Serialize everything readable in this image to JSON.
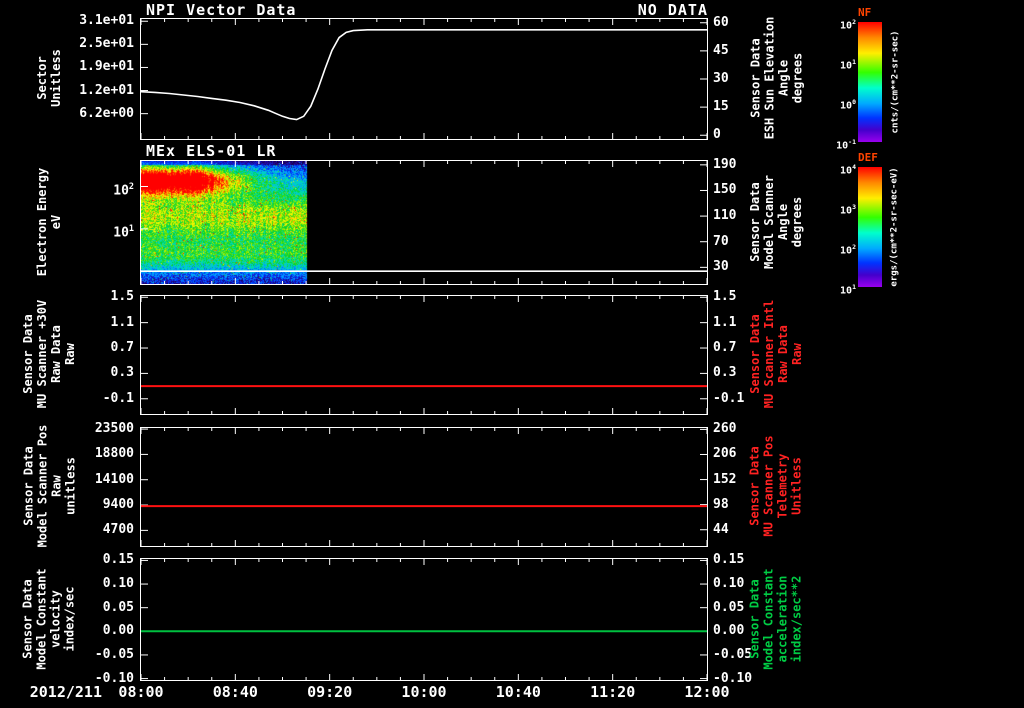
{
  "header": {
    "title": "NPI Vector Data",
    "right_label": "NO DATA"
  },
  "x_axis": {
    "date_label": "2012/211",
    "xlim": [
      8,
      12
    ],
    "ticks": [
      {
        "v": 8,
        "label": "08:00"
      },
      {
        "v": 8.6667,
        "label": "08:40"
      },
      {
        "v": 9.3333,
        "label": "09:20"
      },
      {
        "v": 10,
        "label": "10:00"
      },
      {
        "v": 10.6667,
        "label": "10:40"
      },
      {
        "v": 11.3333,
        "label": "11:20"
      },
      {
        "v": 12,
        "label": "12:00"
      }
    ]
  },
  "colorbars": [
    {
      "name": "NF",
      "ticks": [
        "10^2",
        "10^1",
        "10^0",
        "10^-1"
      ],
      "unit": "cnts/(cm**2-sr-sec)"
    },
    {
      "name": "DEF",
      "ticks": [
        "10^4",
        "10^3",
        "10^2",
        "10^1"
      ],
      "unit": "ergs/(cm**2-sr-sec-eV)"
    }
  ],
  "chart_data": [
    {
      "id": "npi-vector",
      "type": "line",
      "title": "NPI Vector Data",
      "status": "NO DATA",
      "left_axis": {
        "label_lines": [
          "Sector",
          "Unitless"
        ],
        "color": "#ffffff",
        "scale": "linear",
        "ylim": [
          -0.6,
          31.6
        ],
        "ticks": [
          {
            "v": 31,
            "label": "3.1e+01"
          },
          {
            "v": 24.8,
            "label": "2.5e+01"
          },
          {
            "v": 18.6,
            "label": "1.9e+01"
          },
          {
            "v": 12.4,
            "label": "1.2e+01"
          },
          {
            "v": 6.2,
            "label": "6.2e+00"
          }
        ]
      },
      "right_axis": {
        "label_lines": [
          "Sensor Data",
          "ESH Sun Elevation",
          "Angle",
          "degrees"
        ],
        "color": "#ffffff",
        "scale": "linear",
        "ylim": [
          -2,
          62
        ],
        "ticks": [
          {
            "v": 60,
            "label": "60"
          },
          {
            "v": 45,
            "label": "45"
          },
          {
            "v": 30,
            "label": "30"
          },
          {
            "v": 15,
            "label": "15"
          },
          {
            "v": 0,
            "label": "0"
          }
        ]
      },
      "series": [
        {
          "name": "esh-sun-elevation-angle",
          "axis": "left",
          "color": "#ffffff",
          "width": 1.6,
          "points": [
            [
              8,
              12.1
            ],
            [
              8.1,
              11.9
            ],
            [
              8.2,
              11.6
            ],
            [
              8.3,
              11.2
            ],
            [
              8.4,
              10.8
            ],
            [
              8.5,
              10.3
            ],
            [
              8.6,
              9.8
            ],
            [
              8.7,
              9.2
            ],
            [
              8.8,
              8.3
            ],
            [
              8.9,
              7.1
            ],
            [
              8.95,
              6.3
            ],
            [
              9.0,
              5.5
            ],
            [
              9.05,
              4.9
            ],
            [
              9.1,
              4.6
            ],
            [
              9.15,
              5.5
            ],
            [
              9.2,
              8.2
            ],
            [
              9.25,
              12.8
            ],
            [
              9.3,
              18.2
            ],
            [
              9.35,
              23.2
            ],
            [
              9.4,
              26.6
            ],
            [
              9.45,
              28.0
            ],
            [
              9.5,
              28.5
            ],
            [
              9.6,
              28.7
            ],
            [
              10,
              28.7
            ],
            [
              11,
              28.7
            ],
            [
              12,
              28.7
            ]
          ]
        }
      ]
    },
    {
      "id": "els-spectrogram",
      "type": "heatmap",
      "title": "MEx ELS-01 LR",
      "left_axis": {
        "label_lines": [
          "Electron Energy",
          "eV"
        ],
        "color": "#ffffff",
        "scale": "log",
        "ylim": [
          0.5,
          400
        ],
        "ticks": [
          {
            "v": 100,
            "label": "10^2"
          },
          {
            "v": 10,
            "label": "10^1"
          }
        ]
      },
      "right_axis": {
        "label_lines": [
          "Sensor Data",
          "Model Scanner",
          "Angle",
          "degrees"
        ],
        "color": "#ffffff",
        "scale": "linear",
        "ylim": [
          4,
          196
        ],
        "ticks": [
          {
            "v": 190,
            "label": "190"
          },
          {
            "v": 150,
            "label": "150"
          },
          {
            "v": 110,
            "label": "110"
          },
          {
            "v": 70,
            "label": "70"
          },
          {
            "v": 30,
            "label": "30"
          }
        ]
      },
      "heatmap": {
        "x_start_hours": 8.0,
        "x_end_hours": 9.17,
        "description": "electron energy-flux spectrogram; data 08:00-09:10, no data afterwards",
        "bands": [
          {
            "center_frac": 0.15,
            "sigma": 0.085,
            "amplitude": 1.02,
            "fades_after_frac": 0.35
          },
          {
            "center_frac": 0.45,
            "sigma": 0.17,
            "amplitude": 0.58
          },
          {
            "center_frac": 0.78,
            "sigma": 0.1,
            "amplitude": 0.36
          }
        ]
      },
      "series": [
        {
          "name": "model-scanner-angle",
          "axis": "right",
          "color": "#ffffff",
          "width": 1.6,
          "points": [
            [
              8,
              24
            ],
            [
              12,
              24
            ]
          ]
        }
      ]
    },
    {
      "id": "mu-scanner-30v",
      "type": "line",
      "left_axis": {
        "label_lines": [
          "Sensor Data",
          "MU Scanner +30V",
          "Raw Data",
          "Raw"
        ],
        "color": "#ffffff",
        "scale": "linear",
        "ylim": [
          -0.34,
          1.52
        ],
        "ticks": [
          {
            "v": 1.5,
            "label": "1.5"
          },
          {
            "v": 1.1,
            "label": "1.1"
          },
          {
            "v": 0.7,
            "label": "0.7"
          },
          {
            "v": 0.3,
            "label": "0.3"
          },
          {
            "v": -0.1,
            "label": "-0.1"
          }
        ]
      },
      "right_axis": {
        "label_lines": [
          "Sensor Data",
          "MU Scanner Intl",
          "Raw Data",
          "Raw"
        ],
        "color": "#ff2222",
        "scale": "linear",
        "ylim": [
          -0.34,
          1.52
        ],
        "ticks": [
          {
            "v": 1.5,
            "label": "1.5"
          },
          {
            "v": 1.1,
            "label": "1.1"
          },
          {
            "v": 0.7,
            "label": "0.7"
          },
          {
            "v": 0.3,
            "label": "0.3"
          },
          {
            "v": -0.1,
            "label": "-0.1"
          }
        ]
      },
      "series": [
        {
          "name": "mu-scanner-30v-raw",
          "axis": "left",
          "color": "#ff1111",
          "width": 2,
          "points": [
            [
              8,
              0.1
            ],
            [
              12,
              0.1
            ]
          ]
        }
      ]
    },
    {
      "id": "model-scanner-pos",
      "type": "line",
      "left_axis": {
        "label_lines": [
          "Sensor Data",
          "Model Scanner Pos",
          "Raw",
          "unitless"
        ],
        "color": "#ffffff",
        "scale": "linear",
        "ylim": [
          1800,
          23700
        ],
        "ticks": [
          {
            "v": 23500,
            "label": "23500"
          },
          {
            "v": 18800,
            "label": "18800"
          },
          {
            "v": 14100,
            "label": "14100"
          },
          {
            "v": 9400,
            "label": "9400"
          },
          {
            "v": 4700,
            "label": "4700"
          }
        ]
      },
      "right_axis": {
        "label_lines": [
          "Sensor Data",
          "MU Scanner Pos",
          "Telemetry",
          "Unitless"
        ],
        "color": "#ff2222",
        "scale": "linear",
        "ylim": [
          9,
          263
        ],
        "ticks": [
          {
            "v": 260,
            "label": "260"
          },
          {
            "v": 206,
            "label": "206"
          },
          {
            "v": 152,
            "label": "152"
          },
          {
            "v": 98,
            "label": "98"
          },
          {
            "v": 44,
            "label": "44"
          }
        ]
      },
      "series": [
        {
          "name": "model-scanner-pos-raw",
          "axis": "left",
          "color": "#ff1111",
          "width": 2,
          "points": [
            [
              8,
              9200
            ],
            [
              12,
              9200
            ]
          ]
        }
      ]
    },
    {
      "id": "model-constant",
      "type": "line",
      "left_axis": {
        "label_lines": [
          "Sensor Data",
          "Model Constant",
          "velocity",
          "index/sec"
        ],
        "color": "#ffffff",
        "scale": "linear",
        "ylim": [
          -0.103,
          0.153
        ],
        "ticks": [
          {
            "v": 0.15,
            "label": "0.15"
          },
          {
            "v": 0.1,
            "label": "0.10"
          },
          {
            "v": 0.05,
            "label": "0.05"
          },
          {
            "v": 0,
            "label": "0.00"
          },
          {
            "v": -0.05,
            "label": "-0.05"
          },
          {
            "v": -0.1,
            "label": "-0.10"
          }
        ]
      },
      "right_axis": {
        "label_lines": [
          "Sensor Data",
          "Model Constant",
          "acceleration",
          "index/sec**2"
        ],
        "color": "#00cc44",
        "scale": "linear",
        "ylim": [
          -0.103,
          0.153
        ],
        "ticks": [
          {
            "v": 0.15,
            "label": "0.15"
          },
          {
            "v": 0.1,
            "label": "0.10"
          },
          {
            "v": 0.05,
            "label": "0.05"
          },
          {
            "v": 0,
            "label": "0.00"
          },
          {
            "v": -0.05,
            "label": "-0.05"
          },
          {
            "v": -0.1,
            "label": "-0.10"
          }
        ]
      },
      "series": [
        {
          "name": "model-constant-velocity",
          "axis": "left",
          "color": "#00c040",
          "width": 2,
          "points": [
            [
              8,
              0
            ],
            [
              12,
              0
            ]
          ]
        }
      ]
    }
  ]
}
